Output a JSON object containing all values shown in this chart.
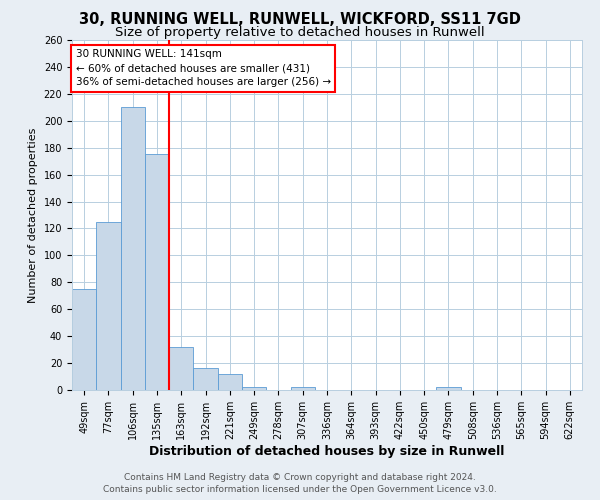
{
  "title": "30, RUNNING WELL, RUNWELL, WICKFORD, SS11 7GD",
  "subtitle": "Size of property relative to detached houses in Runwell",
  "xlabel": "Distribution of detached houses by size in Runwell",
  "ylabel": "Number of detached properties",
  "footer_line1": "Contains HM Land Registry data © Crown copyright and database right 2024.",
  "footer_line2": "Contains public sector information licensed under the Open Government Licence v3.0.",
  "annotation_line1": "30 RUNNING WELL: 141sqm",
  "annotation_line2": "← 60% of detached houses are smaller (431)",
  "annotation_line3": "36% of semi-detached houses are larger (256) →",
  "bar_labels": [
    "49sqm",
    "77sqm",
    "106sqm",
    "135sqm",
    "163sqm",
    "192sqm",
    "221sqm",
    "249sqm",
    "278sqm",
    "307sqm",
    "336sqm",
    "364sqm",
    "393sqm",
    "422sqm",
    "450sqm",
    "479sqm",
    "508sqm",
    "536sqm",
    "565sqm",
    "594sqm",
    "622sqm"
  ],
  "bar_values": [
    75,
    125,
    210,
    175,
    32,
    16,
    12,
    2,
    0,
    2,
    0,
    0,
    0,
    0,
    0,
    2,
    0,
    0,
    0,
    0,
    0
  ],
  "bar_color": "#c8d8e8",
  "bar_edge_color": "#5b9bd5",
  "red_line_x": 3.5,
  "ylim": [
    0,
    260
  ],
  "yticks": [
    0,
    20,
    40,
    60,
    80,
    100,
    120,
    140,
    160,
    180,
    200,
    220,
    240,
    260
  ],
  "background_color": "#e8eef4",
  "plot_bg_color": "#ffffff",
  "grid_color": "#b8cfe0",
  "title_fontsize": 10.5,
  "subtitle_fontsize": 9.5,
  "xlabel_fontsize": 9,
  "ylabel_fontsize": 8,
  "tick_fontsize": 7,
  "annotation_fontsize": 7.5,
  "footer_fontsize": 6.5
}
